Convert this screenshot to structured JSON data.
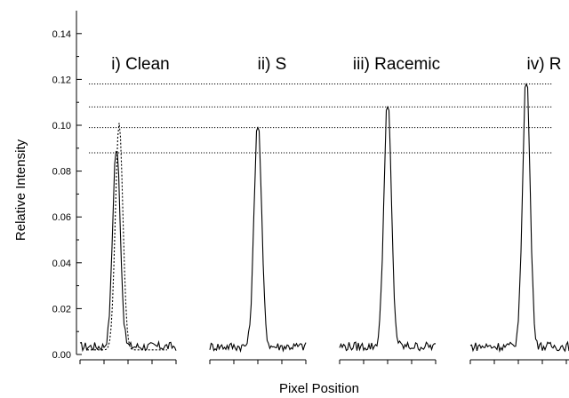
{
  "chart_data": {
    "type": "line",
    "title": "",
    "xlabel": "Pixel Position",
    "ylabel": "Relative Intensity",
    "ylim": [
      0.0,
      0.15
    ],
    "yticks": [
      "0.00",
      "0.02",
      "0.04",
      "0.06",
      "0.08",
      "0.10",
      "0.12",
      "0.14"
    ],
    "grid": false,
    "panels": [
      {
        "label": "i) Clean",
        "peak": 0.089,
        "overlay_peak": 0.099
      },
      {
        "label": "ii) S",
        "peak": 0.099
      },
      {
        "label": "iii) Racemic",
        "peak": 0.108
      },
      {
        "label": "iv) R",
        "peak": 0.118
      }
    ],
    "reference_lines": [
      0.088,
      0.099,
      0.108,
      0.118
    ]
  }
}
